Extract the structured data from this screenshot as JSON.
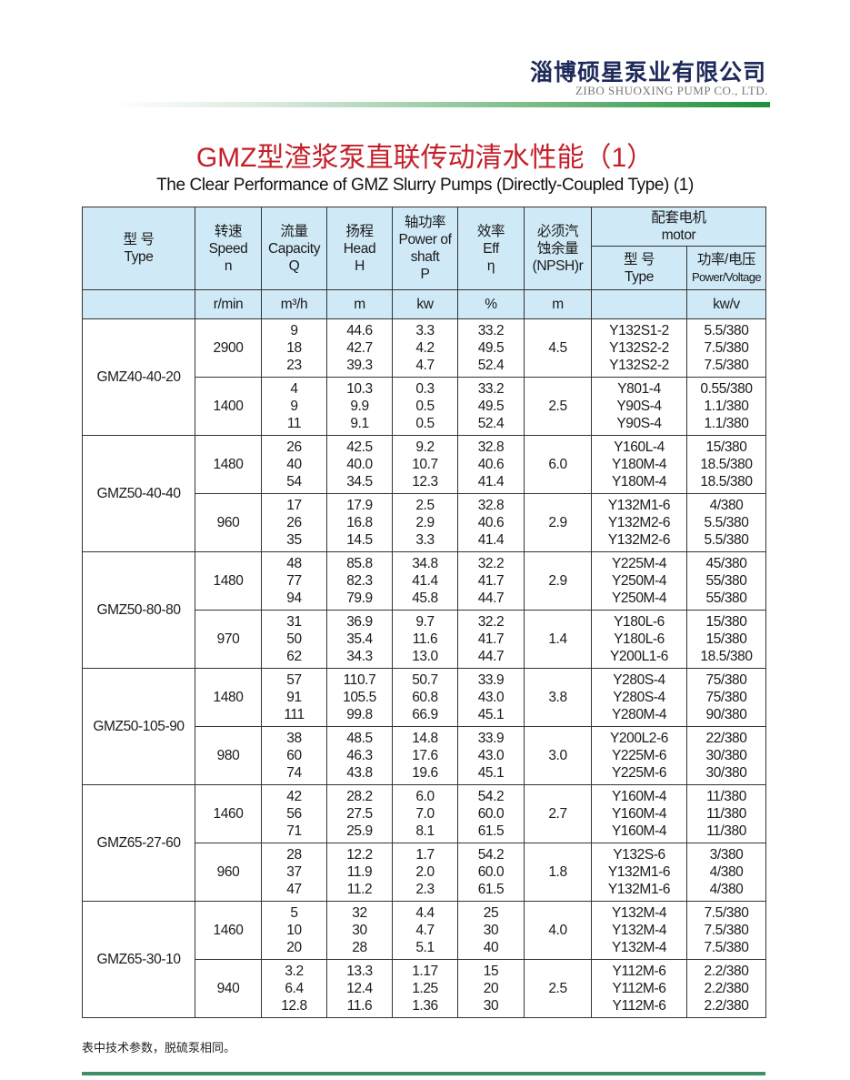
{
  "brand": {
    "name_cn": "淄博硕星泵业有限公司",
    "name_en": "ZIBO SHUOXING PUMP CO., LTD."
  },
  "title_cn": "GMZ型渣浆泵直联传动清水性能（1）",
  "title_en": "The Clear Performance of GMZ Slurry Pumps (Directly-Coupled Type) (1)",
  "header": {
    "type": [
      "型 号",
      "Type"
    ],
    "speed": [
      "转速",
      "Speed",
      "n"
    ],
    "capacity": [
      "流量",
      "Capacity",
      "Q"
    ],
    "head": [
      "扬程",
      "Head",
      "H"
    ],
    "power": [
      "轴功率",
      "Power of",
      "shaft",
      "P"
    ],
    "eff": [
      "效率",
      "Eff",
      "η"
    ],
    "npsh": [
      "必须汽",
      "蚀余量",
      "(NPSH)r"
    ],
    "motor": [
      "配套电机",
      "motor"
    ],
    "motor_type": [
      "型 号",
      "Type"
    ],
    "motor_pv": [
      "功率/电压",
      "Power/Voltage"
    ]
  },
  "units": {
    "speed": "r/min",
    "capacity": "m³/h",
    "head": "m",
    "power": "kw",
    "eff": "%",
    "npsh": "m",
    "motor_pv": "kw/v"
  },
  "models": [
    {
      "type": "GMZ40-40-20",
      "blocks": [
        {
          "speed": "2900",
          "Q": [
            "9",
            "18",
            "23"
          ],
          "H": [
            "44.6",
            "42.7",
            "39.3"
          ],
          "P": [
            "3.3",
            "4.2",
            "4.7"
          ],
          "eff": [
            "33.2",
            "49.5",
            "52.4"
          ],
          "npsh": "4.5",
          "motor": [
            "Y132S1-2",
            "Y132S2-2",
            "Y132S2-2"
          ],
          "pv": [
            "5.5/380",
            "7.5/380",
            "7.5/380"
          ]
        },
        {
          "speed": "1400",
          "Q": [
            "4",
            "9",
            "11"
          ],
          "H": [
            "10.3",
            "9.9",
            "9.1"
          ],
          "P": [
            "0.3",
            "0.5",
            "0.5"
          ],
          "eff": [
            "33.2",
            "49.5",
            "52.4"
          ],
          "npsh": "2.5",
          "motor": [
            "Y801-4",
            "Y90S-4",
            "Y90S-4"
          ],
          "pv": [
            "0.55/380",
            "1.1/380",
            "1.1/380"
          ]
        }
      ]
    },
    {
      "type": "GMZ50-40-40",
      "blocks": [
        {
          "speed": "1480",
          "Q": [
            "26",
            "40",
            "54"
          ],
          "H": [
            "42.5",
            "40.0",
            "34.5"
          ],
          "P": [
            "9.2",
            "10.7",
            "12.3"
          ],
          "eff": [
            "32.8",
            "40.6",
            "41.4"
          ],
          "npsh": "6.0",
          "motor": [
            "Y160L-4",
            "Y180M-4",
            "Y180M-4"
          ],
          "pv": [
            "15/380",
            "18.5/380",
            "18.5/380"
          ]
        },
        {
          "speed": "960",
          "Q": [
            "17",
            "26",
            "35"
          ],
          "H": [
            "17.9",
            "16.8",
            "14.5"
          ],
          "P": [
            "2.5",
            "2.9",
            "3.3"
          ],
          "eff": [
            "32.8",
            "40.6",
            "41.4"
          ],
          "npsh": "2.9",
          "motor": [
            "Y132M1-6",
            "Y132M2-6",
            "Y132M2-6"
          ],
          "pv": [
            "4/380",
            "5.5/380",
            "5.5/380"
          ]
        }
      ]
    },
    {
      "type": "GMZ50-80-80",
      "blocks": [
        {
          "speed": "1480",
          "Q": [
            "48",
            "77",
            "94"
          ],
          "H": [
            "85.8",
            "82.3",
            "79.9"
          ],
          "P": [
            "34.8",
            "41.4",
            "45.8"
          ],
          "eff": [
            "32.2",
            "41.7",
            "44.7"
          ],
          "npsh": "2.9",
          "motor": [
            "Y225M-4",
            "Y250M-4",
            "Y250M-4"
          ],
          "pv": [
            "45/380",
            "55/380",
            "55/380"
          ]
        },
        {
          "speed": "970",
          "Q": [
            "31",
            "50",
            "62"
          ],
          "H": [
            "36.9",
            "35.4",
            "34.3"
          ],
          "P": [
            "9.7",
            "11.6",
            "13.0"
          ],
          "eff": [
            "32.2",
            "41.7",
            "44.7"
          ],
          "npsh": "1.4",
          "motor": [
            "Y180L-6",
            "Y180L-6",
            "Y200L1-6"
          ],
          "pv": [
            "15/380",
            "15/380",
            "18.5/380"
          ]
        }
      ]
    },
    {
      "type": "GMZ50-105-90",
      "blocks": [
        {
          "speed": "1480",
          "Q": [
            "57",
            "91",
            "111"
          ],
          "H": [
            "110.7",
            "105.5",
            "99.8"
          ],
          "P": [
            "50.7",
            "60.8",
            "66.9"
          ],
          "eff": [
            "33.9",
            "43.0",
            "45.1"
          ],
          "npsh": "3.8",
          "motor": [
            "Y280S-4",
            "Y280S-4",
            "Y280M-4"
          ],
          "pv": [
            "75/380",
            "75/380",
            "90/380"
          ]
        },
        {
          "speed": "980",
          "Q": [
            "38",
            "60",
            "74"
          ],
          "H": [
            "48.5",
            "46.3",
            "43.8"
          ],
          "P": [
            "14.8",
            "17.6",
            "19.6"
          ],
          "eff": [
            "33.9",
            "43.0",
            "45.1"
          ],
          "npsh": "3.0",
          "motor": [
            "Y200L2-6",
            "Y225M-6",
            "Y225M-6"
          ],
          "pv": [
            "22/380",
            "30/380",
            "30/380"
          ]
        }
      ]
    },
    {
      "type": "GMZ65-27-60",
      "blocks": [
        {
          "speed": "1460",
          "Q": [
            "42",
            "56",
            "71"
          ],
          "H": [
            "28.2",
            "27.5",
            "25.9"
          ],
          "P": [
            "6.0",
            "7.0",
            "8.1"
          ],
          "eff": [
            "54.2",
            "60.0",
            "61.5"
          ],
          "npsh": "2.7",
          "motor": [
            "Y160M-4",
            "Y160M-4",
            "Y160M-4"
          ],
          "pv": [
            "11/380",
            "11/380",
            "11/380"
          ]
        },
        {
          "speed": "960",
          "Q": [
            "28",
            "37",
            "47"
          ],
          "H": [
            "12.2",
            "11.9",
            "11.2"
          ],
          "P": [
            "1.7",
            "2.0",
            "2.3"
          ],
          "eff": [
            "54.2",
            "60.0",
            "61.5"
          ],
          "npsh": "1.8",
          "motor": [
            "Y132S-6",
            "Y132M1-6",
            "Y132M1-6"
          ],
          "pv": [
            "3/380",
            "4/380",
            "4/380"
          ]
        }
      ]
    },
    {
      "type": "GMZ65-30-10",
      "blocks": [
        {
          "speed": "1460",
          "Q": [
            "5",
            "10",
            "20"
          ],
          "H": [
            "32",
            "30",
            "28"
          ],
          "P": [
            "4.4",
            "4.7",
            "5.1"
          ],
          "eff": [
            "25",
            "30",
            "40"
          ],
          "npsh": "4.0",
          "motor": [
            "Y132M-4",
            "Y132M-4",
            "Y132M-4"
          ],
          "pv": [
            "7.5/380",
            "7.5/380",
            "7.5/380"
          ]
        },
        {
          "speed": "940",
          "Q": [
            "3.2",
            "6.4",
            "12.8"
          ],
          "H": [
            "13.3",
            "12.4",
            "11.6"
          ],
          "P": [
            "1.17",
            "1.25",
            "1.36"
          ],
          "eff": [
            "15",
            "20",
            "30"
          ],
          "npsh": "2.5",
          "motor": [
            "Y112M-6",
            "Y112M-6",
            "Y112M-6"
          ],
          "pv": [
            "2.2/380",
            "2.2/380",
            "2.2/380"
          ]
        }
      ]
    }
  ],
  "footnote": "表中技术参数，脱硫泵相同。",
  "colors": {
    "header_bg": "#cfe9f6",
    "title_red": "#c4202a",
    "brand_green": "#1e8f3c"
  }
}
